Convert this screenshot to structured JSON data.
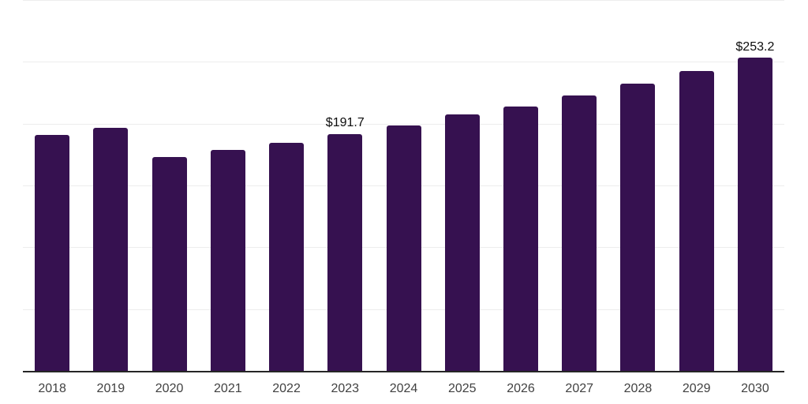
{
  "chart": {
    "background_color": "#ffffff",
    "bar_color": "#361150",
    "gridline_color": "#ededed",
    "axis_line_color": "#262626",
    "tick_label_color": "#414141",
    "data_label_color": "#0d0d0d"
  },
  "chart_data": {
    "type": "bar",
    "categories": [
      "2018",
      "2019",
      "2020",
      "2021",
      "2022",
      "2023",
      "2024",
      "2025",
      "2026",
      "2027",
      "2028",
      "2029",
      "2030"
    ],
    "values": [
      191.0,
      196.8,
      172.8,
      178.7,
      184.5,
      191.7,
      198.5,
      207.2,
      213.8,
      222.8,
      232.5,
      242.7,
      253.2
    ],
    "data_labels": {
      "2023": "$191.7",
      "2030": "$253.2"
    },
    "title": "",
    "xlabel": "",
    "ylabel": "",
    "ylim": [
      0,
      300
    ],
    "gridline_step": 50,
    "grid": true,
    "legend": false,
    "y_axis_tick_labels_shown": false
  }
}
